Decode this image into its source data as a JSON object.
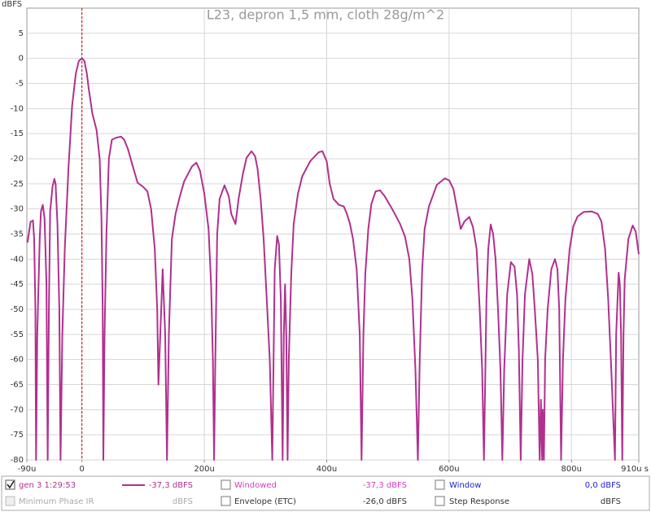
{
  "chart_data": {
    "type": "line",
    "title": "L23, depron 1,5 mm, cloth 28g/m^2",
    "y_label": "dBFS",
    "x": [
      -89,
      -84,
      -80,
      -78,
      -76,
      -75,
      -73,
      -69,
      -67,
      -64,
      -61,
      -58,
      -56,
      -54,
      -52,
      -48,
      -45,
      -43,
      -40,
      -37,
      -35,
      -32,
      -28,
      -22,
      -16,
      -10,
      -5,
      0,
      4,
      8,
      11,
      17,
      24,
      29,
      32,
      34,
      35,
      37,
      40,
      44,
      49,
      56,
      64,
      69,
      75,
      82,
      91,
      100,
      107,
      113,
      119,
      123,
      125,
      132,
      136,
      139,
      142,
      147,
      153,
      160,
      167,
      180,
      187,
      193,
      200,
      207,
      211,
      214,
      216,
      218,
      221,
      225,
      233,
      240,
      244,
      251,
      256,
      263,
      269,
      277,
      283,
      287,
      292,
      297,
      302,
      307,
      311,
      315,
      319,
      322,
      325,
      328,
      330,
      332,
      334,
      336,
      338,
      342,
      346,
      353,
      360,
      373,
      387,
      393,
      400,
      405,
      411,
      420,
      428,
      433,
      438,
      443,
      449,
      454,
      457,
      460,
      463,
      468,
      473,
      480,
      487,
      495,
      507,
      520,
      528,
      535,
      540,
      545,
      549,
      552,
      556,
      560,
      567,
      573,
      580,
      593,
      600,
      607,
      613,
      619,
      625,
      633,
      639,
      645,
      650,
      654,
      657,
      661,
      664,
      668,
      672,
      676,
      680,
      684,
      687,
      690,
      695,
      701,
      707,
      711,
      714,
      717,
      720,
      724,
      731,
      736,
      740,
      745,
      748,
      750,
      752,
      753,
      755,
      757,
      761,
      767,
      773,
      777,
      780,
      783,
      786,
      790,
      797,
      803,
      810,
      820,
      833,
      843,
      849,
      855,
      860,
      865,
      871,
      873,
      877,
      879,
      881,
      883,
      885,
      887,
      893,
      900,
      905,
      910
    ],
    "series": [
      {
        "name": "gen 3 1:29:53",
        "color": "#b0308f",
        "values": [
          -36.7,
          -32.6,
          -32.3,
          -36,
          -50,
          -80,
          -55,
          -36,
          -30.5,
          -29.2,
          -32,
          -45,
          -80,
          -50,
          -30.5,
          -25.5,
          -24,
          -25,
          -33,
          -50,
          -80,
          -55,
          -38,
          -22,
          -9.5,
          -3,
          -0.5,
          0,
          -0.5,
          -3,
          -6,
          -11,
          -14.3,
          -20,
          -32,
          -50,
          -80,
          -55,
          -35,
          -20,
          -16.2,
          -15.8,
          -15.6,
          -16.2,
          -18,
          -21,
          -24.8,
          -25.6,
          -26.5,
          -30,
          -38,
          -50,
          -65,
          -42,
          -55,
          -80,
          -55,
          -36,
          -31,
          -27.5,
          -24.5,
          -21.5,
          -20.8,
          -22.4,
          -27,
          -34,
          -45,
          -60,
          -80,
          -60,
          -35,
          -28,
          -25.3,
          -27.5,
          -31,
          -33,
          -28,
          -23,
          -19.8,
          -18.5,
          -19.5,
          -22,
          -28,
          -36,
          -48,
          -60,
          -80,
          -42,
          -35.4,
          -37,
          -48,
          -80,
          -55,
          -45,
          -55,
          -80,
          -60,
          -43,
          -33,
          -27,
          -23.5,
          -20.5,
          -18.7,
          -18.5,
          -20.5,
          -25,
          -28,
          -29.2,
          -29.5,
          -31,
          -33,
          -36,
          -42,
          -55,
          -80,
          -55,
          -43,
          -34,
          -29,
          -26.5,
          -26.3,
          -27.5,
          -30,
          -33,
          -35.5,
          -40,
          -48,
          -62,
          -80,
          -60,
          -42,
          -34,
          -29.5,
          -27.5,
          -25.2,
          -23.9,
          -24.3,
          -26,
          -30,
          -34,
          -32.5,
          -31.6,
          -33.6,
          -38,
          -50,
          -62,
          -80,
          -48,
          -38,
          -33.1,
          -35,
          -40,
          -50,
          -62,
          -80,
          -62,
          -47,
          -40.6,
          -41.5,
          -47,
          -58,
          -80,
          -60,
          -47,
          -40,
          -43,
          -50,
          -60,
          -80,
          -68,
          -80,
          -70,
          -80,
          -60,
          -50,
          -42,
          -40,
          -42,
          -50,
          -80,
          -60,
          -48,
          -38,
          -33.5,
          -31.5,
          -30.6,
          -30.5,
          -31,
          -32.5,
          -38,
          -48,
          -62,
          -80,
          -55,
          -42.7,
          -45,
          -55,
          -80,
          -55,
          -44,
          -36,
          -33.3,
          -34.5,
          -39
        ]
      }
    ],
    "marker_x": 0,
    "marker_color": "#d00000",
    "xlim": [
      -90,
      910
    ],
    "xticks": [
      {
        "value": -90,
        "label": "-90u"
      },
      0,
      {
        "value": 200,
        "label": "200u"
      },
      {
        "value": 400,
        "label": "400u"
      },
      {
        "value": 600,
        "label": "600u"
      },
      {
        "value": 800,
        "label": "800u"
      },
      {
        "value": 910,
        "label": "910u s"
      }
    ],
    "xgrid": [
      0,
      200,
      400,
      600,
      800
    ],
    "ylim": [
      -80,
      10
    ],
    "yticks": [
      5,
      0,
      -5,
      -10,
      -15,
      -20,
      -25,
      -30,
      -35,
      -40,
      -45,
      -50,
      -55,
      -60,
      -65,
      -70,
      -75,
      -80
    ],
    "grid": true
  },
  "panel": {
    "value": "-37,3 dBFS",
    "windowed": "Windowed",
    "windowed_value": "-37,3 dBFS",
    "window": "Window",
    "window_value": "0,0 dBFS",
    "min_phase": "Minimum Phase IR",
    "min_phase_value": "dBFS",
    "envelope": "Envelope (ETC)",
    "envelope_value": "-26,0 dBFS",
    "step": "Step Response",
    "step_value": "dBFS"
  }
}
